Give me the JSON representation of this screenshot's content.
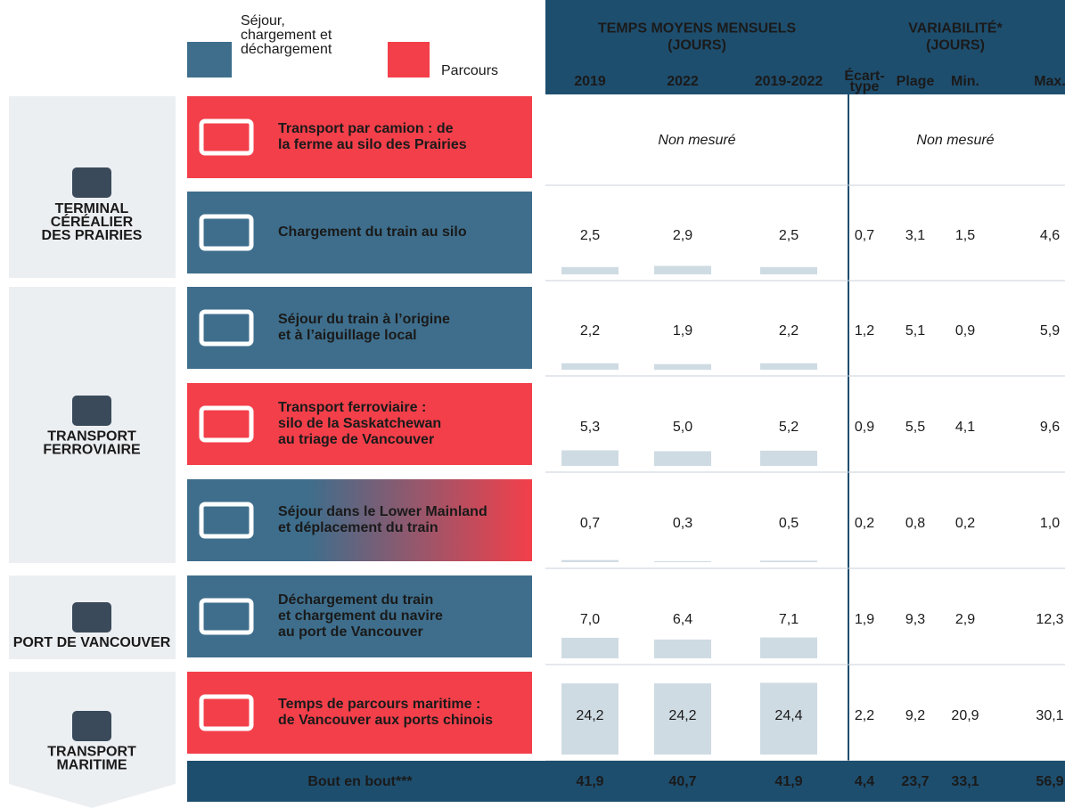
{
  "legend": [
    {
      "lines": [
        "Séjour,",
        "chargement et",
        "déchargement"
      ],
      "color": "#3e6e8c"
    },
    {
      "lines": [
        "Parcours"
      ],
      "color": "#f33f4a"
    }
  ],
  "header": {
    "mean_title": [
      "TEMPS MOYENS MENSUELS",
      "(JOURS)"
    ],
    "var_title": [
      "VARIABILITÉ*",
      "(JOURS)"
    ],
    "mean_columns": [
      "2019",
      "2022",
      "2019-2022"
    ],
    "var_columns": [
      [
        "Écart-",
        "type"
      ],
      [
        "Plage"
      ],
      [
        "Min."
      ],
      [
        "Max."
      ]
    ]
  },
  "groups": [
    {
      "lines": [
        "TERMINAL",
        "CÉRÉALIER",
        "DES PRAIRIES"
      ]
    },
    {
      "lines": [
        "TRANSPORT",
        "FERROVIAIRE"
      ]
    },
    {
      "lines": [
        "PORT DE VANCOUVER"
      ]
    },
    {
      "lines": [
        "TRANSPORT",
        "MARITIME"
      ]
    }
  ],
  "rows": [
    {
      "color": [
        "#f33f4a"
      ],
      "lines": [
        "Transport par camion : de",
        "la ferme au silo des Prairies"
      ],
      "mean_text": "Non mesuré",
      "var_text": "Non mesuré"
    },
    {
      "color": [
        "#3e6e8c"
      ],
      "lines": [
        "Chargement du train au silo"
      ],
      "mean": [
        {
          "value": 2.5,
          "label": "2,5"
        },
        {
          "value": 2.9,
          "label": "2,9"
        },
        {
          "value": 2.5,
          "label": "2,5"
        }
      ],
      "variability": [
        "0,7",
        "3,1",
        "1,5",
        "4,6"
      ]
    },
    {
      "color": [
        "#3e6e8c"
      ],
      "lines": [
        "Séjour du train à l’origine",
        "et à l’aiguillage local"
      ],
      "mean": [
        {
          "value": 2.2,
          "label": "2,2"
        },
        {
          "value": 1.9,
          "label": "1,9"
        },
        {
          "value": 2.2,
          "label": "2,2"
        }
      ],
      "variability": [
        "1,2",
        "5,1",
        "0,9",
        "5,9"
      ]
    },
    {
      "color": [
        "#f33f4a"
      ],
      "lines": [
        "Transport ferroviaire :",
        "silo de la Saskatchewan",
        "au triage de Vancouver"
      ],
      "mean": [
        {
          "value": 5.3,
          "label": "5,3"
        },
        {
          "value": 5.0,
          "label": "5,0"
        },
        {
          "value": 5.2,
          "label": "5,2"
        }
      ],
      "variability": [
        "0,9",
        "5,5",
        "4,1",
        "9,6"
      ]
    },
    {
      "color": [
        "#3e6e8c",
        "#f33f4a"
      ],
      "lines": [
        "Séjour dans le Lower Mainland",
        "et déplacement du train"
      ],
      "mean": [
        {
          "value": 0.7,
          "label": "0,7"
        },
        {
          "value": 0.3,
          "label": "0,3"
        },
        {
          "value": 0.5,
          "label": "0,5"
        }
      ],
      "variability": [
        "0,2",
        "0,8",
        "0,2",
        "1,0"
      ]
    },
    {
      "color": [
        "#3e6e8c"
      ],
      "lines": [
        "Déchargement du train",
        "et chargement du navire",
        "au port de Vancouver"
      ],
      "mean": [
        {
          "value": 7.0,
          "label": "7,0"
        },
        {
          "value": 6.4,
          "label": "6,4"
        },
        {
          "value": 7.1,
          "label": "7,1"
        }
      ],
      "variability": [
        "1,9",
        "9,3",
        "2,9",
        "12,3"
      ]
    },
    {
      "color": [
        "#f33f4a"
      ],
      "lines": [
        "Temps de parcours maritime :",
        "de Vancouver aux ports chinois"
      ],
      "mean": [
        {
          "value": 24.2,
          "label": "24,2"
        },
        {
          "value": 24.2,
          "label": "24,2"
        },
        {
          "value": 24.4,
          "label": "24,4"
        }
      ],
      "variability": [
        "2,2",
        "9,2",
        "20,9",
        "30,1"
      ]
    }
  ],
  "total": {
    "label": "Bout en bout***",
    "mean": [
      "41,9",
      "40,7",
      "41,9"
    ],
    "variability": [
      "4,4",
      "23,7",
      "33,1",
      "56,9"
    ]
  }
}
